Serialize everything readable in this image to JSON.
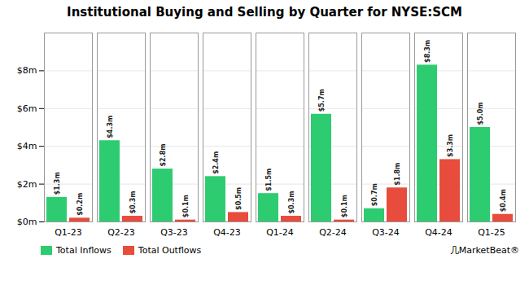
{
  "chart_data": {
    "type": "bar",
    "title": "Institutional Buying and Selling by Quarter for NYSE:SCM",
    "categories": [
      "Q1-23",
      "Q2-23",
      "Q3-23",
      "Q4-23",
      "Q1-24",
      "Q2-24",
      "Q3-24",
      "Q4-24",
      "Q1-25"
    ],
    "series": [
      {
        "name": "Total Inflows",
        "color": "#2ecc71",
        "values": [
          1.3,
          4.3,
          2.8,
          2.4,
          1.5,
          5.7,
          0.7,
          8.3,
          5.0
        ],
        "value_labels": [
          "$1.3m",
          "$4.3m",
          "$2.8m",
          "$2.4m",
          "$1.5m",
          "$5.7m",
          "$0.7m",
          "$8.3m",
          "$5.0m"
        ]
      },
      {
        "name": "Total Outflows",
        "color": "#e74c3c",
        "values": [
          0.2,
          0.3,
          0.1,
          0.5,
          0.3,
          0.1,
          1.8,
          3.3,
          0.4
        ],
        "value_labels": [
          "$0.2m",
          "$0.3m",
          "$0.1m",
          "$0.5m",
          "$0.3m",
          "$0.1m",
          "$1.8m",
          "$3.3m",
          "$0.4m"
        ]
      }
    ],
    "ylim": [
      0,
      10
    ],
    "yticks": [
      {
        "value": 0,
        "label": "$0m"
      },
      {
        "value": 2,
        "label": "$2m"
      },
      {
        "value": 4,
        "label": "$4m"
      },
      {
        "value": 6,
        "label": "$6m"
      },
      {
        "value": 8,
        "label": "$8m"
      }
    ],
    "grid": true,
    "legend": "bottom left",
    "data_labels": true,
    "annotations": [
      "⼏MarketBeat®"
    ]
  }
}
